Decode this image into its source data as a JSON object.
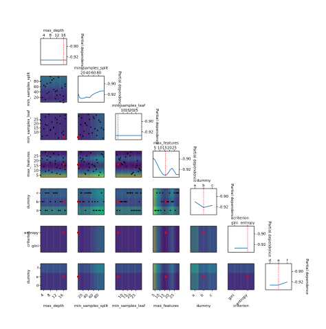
{
  "chart_data": {
    "type": "scatter",
    "title": "",
    "dimensions": [
      {
        "name": "max_depth",
        "kind": "numeric",
        "range": [
          2,
          18
        ],
        "ticks": [
          4,
          8,
          12,
          16
        ],
        "best": 16,
        "pd_x": [
          2,
          4,
          6,
          8,
          10,
          12,
          14,
          16,
          18
        ],
        "pd_y": [
          -0.926,
          -0.926,
          -0.926,
          -0.926,
          -0.926,
          -0.926,
          -0.926,
          -0.926,
          -0.926
        ]
      },
      {
        "name": "min_samples_split",
        "kind": "numeric",
        "range": [
          2,
          100
        ],
        "ticks": [
          20,
          40,
          60,
          80
        ],
        "best": 2,
        "pd_x": [
          2,
          8,
          15,
          25,
          35,
          45,
          55,
          65,
          75,
          85,
          95,
          100
        ],
        "pd_y": [
          -0.918,
          -0.926,
          -0.928,
          -0.927,
          -0.925,
          -0.926,
          -0.921,
          -0.918,
          -0.916,
          -0.914,
          -0.913,
          -0.914
        ]
      },
      {
        "name": "min_samples_leaf",
        "kind": "numeric",
        "range": [
          1,
          32
        ],
        "ticks": [
          10,
          15,
          20,
          25
        ],
        "best": 4,
        "pd_x": [
          1,
          5,
          10,
          15,
          20,
          25,
          30,
          32
        ],
        "pd_y": [
          -0.927,
          -0.927,
          -0.927,
          -0.927,
          -0.927,
          -0.927,
          -0.927,
          -0.927
        ]
      },
      {
        "name": "max_features",
        "kind": "numeric",
        "range": [
          3,
          30
        ],
        "ticks": [
          5,
          10,
          15,
          20,
          25
        ],
        "best": 16,
        "pd_x": [
          3,
          5,
          7,
          9,
          11,
          13,
          15,
          17,
          19,
          21,
          23,
          25,
          27,
          29,
          30
        ],
        "pd_y": [
          -0.898,
          -0.902,
          -0.909,
          -0.917,
          -0.924,
          -0.929,
          -0.931,
          -0.93,
          -0.926,
          -0.92,
          -0.918,
          -0.924,
          -0.93,
          -0.93,
          -0.929
        ]
      },
      {
        "name": "dummy",
        "kind": "categorical",
        "categories": [
          "a",
          "b",
          "c"
        ],
        "ticks": [
          "a",
          "b",
          "c"
        ],
        "best": "b",
        "pd_y": [
          -0.91,
          -0.921,
          -0.917
        ]
      },
      {
        "name": "criterion",
        "kind": "categorical",
        "categories": [
          "gini",
          "entropy"
        ],
        "ticks": [
          "gini",
          "entropy"
        ],
        "best": "entropy",
        "pd_y": [
          -0.927,
          -0.927
        ]
      },
      {
        "name": "dummy",
        "kind": "categorical",
        "categories": [
          "d",
          "e",
          "f"
        ],
        "ticks": [
          "d",
          "e",
          "f"
        ],
        "best": "e",
        "pd_y": [
          -0.926,
          -0.926,
          -0.92
        ]
      }
    ],
    "diag_ylabel": "Partial dependence",
    "diag_yticks": [
      -0.9,
      -0.92
    ],
    "diag_ylim": [
      -0.935,
      -0.885
    ],
    "samples": [
      [
        16,
        10,
        7,
        23,
        "b",
        "entropy",
        "e"
      ],
      [
        5,
        60,
        28,
        9,
        "a",
        "gini",
        "d"
      ],
      [
        10,
        90,
        15,
        27,
        "c",
        "entropy",
        "f"
      ],
      [
        14,
        30,
        20,
        6,
        "a",
        "gini",
        "e"
      ],
      [
        8,
        75,
        12,
        18,
        "b",
        "entropy",
        "d"
      ],
      [
        12,
        45,
        25,
        13,
        "c",
        "gini",
        "f"
      ],
      [
        3,
        20,
        5,
        22,
        "b",
        "entropy",
        "e"
      ],
      [
        17,
        70,
        30,
        11,
        "a",
        "gini",
        "d"
      ],
      [
        6,
        35,
        18,
        25,
        "c",
        "entropy",
        "f"
      ],
      [
        15,
        55,
        9,
        16,
        "b",
        "gini",
        "e"
      ],
      [
        9,
        85,
        22,
        8,
        "a",
        "entropy",
        "d"
      ],
      [
        11,
        15,
        27,
        20,
        "c",
        "gini",
        "f"
      ],
      [
        4,
        65,
        14,
        14,
        "b",
        "entropy",
        "e"
      ],
      [
        13,
        95,
        3,
        26,
        "a",
        "gini",
        "d"
      ],
      [
        7,
        40,
        31,
        10,
        "c",
        "entropy",
        "f"
      ],
      [
        16,
        25,
        11,
        19,
        "b",
        "gini",
        "e"
      ],
      [
        2,
        80,
        24,
        5,
        "a",
        "entropy",
        "d"
      ],
      [
        10,
        50,
        16,
        28,
        "c",
        "gini",
        "f"
      ],
      [
        14,
        5,
        29,
        12,
        "b",
        "entropy",
        "e"
      ],
      [
        6,
        72,
        6,
        21,
        "a",
        "gini",
        "d"
      ],
      [
        12,
        28,
        21,
        7,
        "c",
        "entropy",
        "f"
      ],
      [
        8,
        98,
        13,
        24,
        "b",
        "gini",
        "e"
      ],
      [
        17,
        62,
        26,
        15,
        "a",
        "entropy",
        "d"
      ],
      [
        5,
        12,
        19,
        29,
        "c",
        "gini",
        "f"
      ],
      [
        11,
        42,
        8,
        17,
        "b",
        "entropy",
        "e"
      ]
    ],
    "colors": {
      "sample": "#000000",
      "best_point": "#ff0000",
      "best_line": "#ff0000",
      "pd_line": "#1f77b4"
    }
  }
}
